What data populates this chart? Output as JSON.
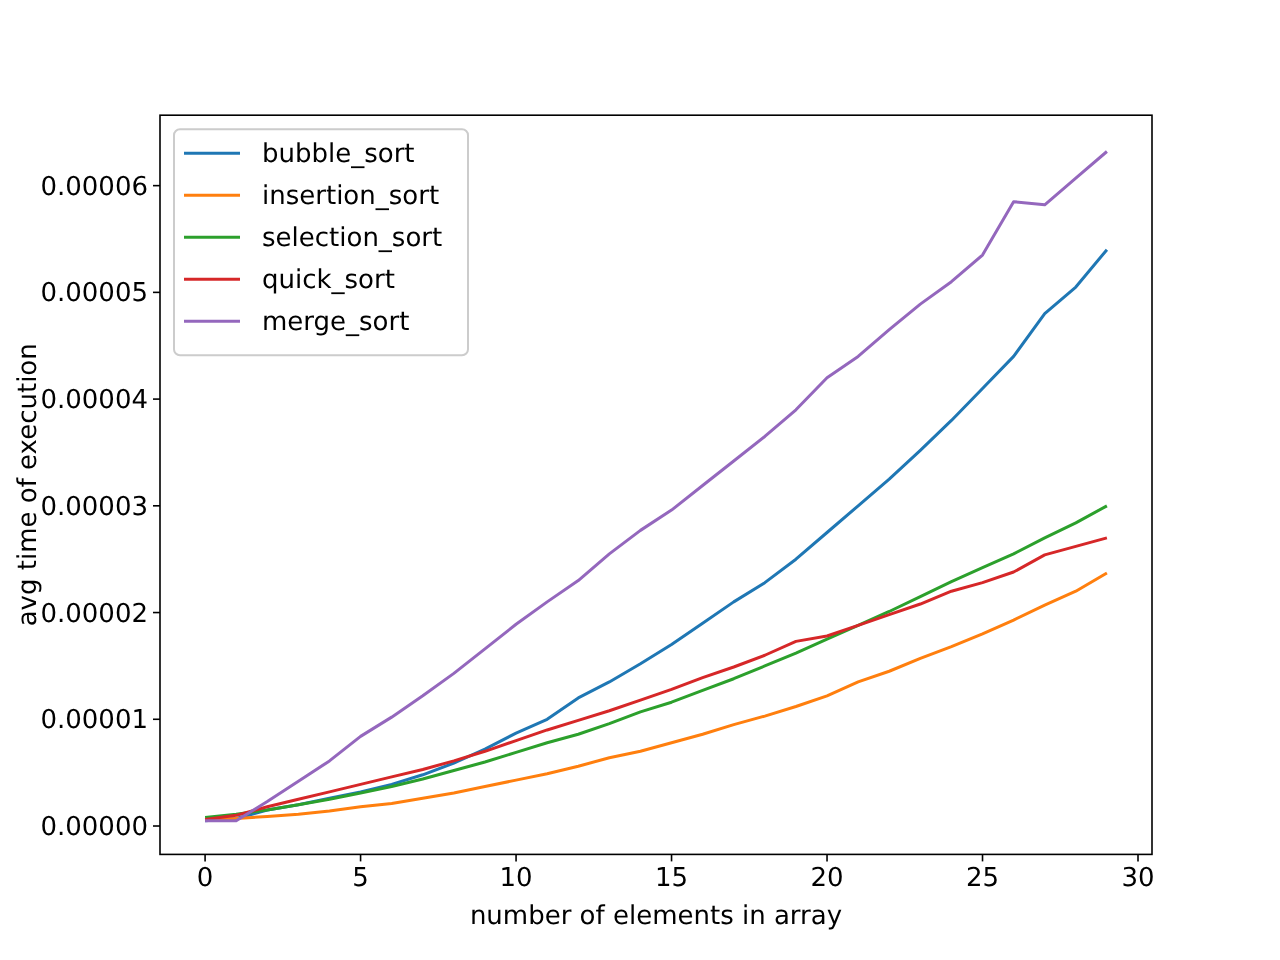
{
  "chart_data": {
    "type": "line",
    "xlabel": "number of elements in array",
    "ylabel": "avg time of execution",
    "x": [
      0,
      1,
      2,
      3,
      4,
      5,
      6,
      7,
      8,
      9,
      10,
      11,
      12,
      13,
      14,
      15,
      16,
      17,
      18,
      19,
      20,
      21,
      22,
      23,
      24,
      25,
      26,
      27,
      28,
      29
    ],
    "xlim": [
      -1.45,
      30.45
    ],
    "xticks": [
      0,
      5,
      10,
      15,
      20,
      25,
      30
    ],
    "ylim": [
      -2.66e-06,
      6.66e-05
    ],
    "yticks": [
      {
        "value": 0,
        "label": "0.00000"
      },
      {
        "value": 1e-05,
        "label": "0.00001"
      },
      {
        "value": 2e-05,
        "label": "0.00002"
      },
      {
        "value": 3e-05,
        "label": "0.00003"
      },
      {
        "value": 4e-05,
        "label": "0.00004"
      },
      {
        "value": 5e-05,
        "label": "0.00005"
      },
      {
        "value": 6e-05,
        "label": "0.00006"
      }
    ],
    "grid": false,
    "legend": "top left",
    "line_style": "solid",
    "marker": "none",
    "series": [
      {
        "name": "bubble_sort",
        "color": "#1f77b4",
        "values": [
          5e-07,
          7e-07,
          1.5e-06,
          2e-06,
          2.6e-06,
          3.2e-06,
          3.9e-06,
          4.8e-06,
          5.9e-06,
          7.2e-06,
          8.7e-06,
          1e-05,
          1.2e-05,
          1.35e-05,
          1.52e-05,
          1.7e-05,
          1.9e-05,
          2.1e-05,
          2.28e-05,
          2.5e-05,
          2.75e-05,
          3e-05,
          3.25e-05,
          3.52e-05,
          3.8e-05,
          4.1e-05,
          4.4e-05,
          4.8e-05,
          5.05e-05,
          5.4e-05
        ]
      },
      {
        "name": "insertion_sort",
        "color": "#ff7f0e",
        "values": [
          6e-07,
          7e-07,
          9e-07,
          1.1e-06,
          1.4e-06,
          1.8e-06,
          2.1e-06,
          2.6e-06,
          3.1e-06,
          3.7e-06,
          4.3e-06,
          4.9e-06,
          5.6e-06,
          6.4e-06,
          7e-06,
          7.8e-06,
          8.6e-06,
          9.5e-06,
          1.03e-05,
          1.12e-05,
          1.22e-05,
          1.35e-05,
          1.45e-05,
          1.57e-05,
          1.68e-05,
          1.8e-05,
          1.93e-05,
          2.07e-05,
          2.2e-05,
          2.37e-05
        ]
      },
      {
        "name": "selection_sort",
        "color": "#2ca02c",
        "values": [
          8e-07,
          1.1e-06,
          1.5e-06,
          2e-06,
          2.5e-06,
          3.1e-06,
          3.7e-06,
          4.4e-06,
          5.2e-06,
          6e-06,
          6.9e-06,
          7.8e-06,
          8.6e-06,
          9.6e-06,
          1.07e-05,
          1.16e-05,
          1.27e-05,
          1.38e-05,
          1.5e-05,
          1.62e-05,
          1.75e-05,
          1.88e-05,
          2.01e-05,
          2.15e-05,
          2.29e-05,
          2.42e-05,
          2.55e-05,
          2.7e-05,
          2.84e-05,
          3e-05
        ]
      },
      {
        "name": "quick_sort",
        "color": "#d62728",
        "values": [
          6e-07,
          1e-06,
          1.8e-06,
          2.5e-06,
          3.2e-06,
          3.9e-06,
          4.6e-06,
          5.3e-06,
          6.1e-06,
          7e-06,
          8e-06,
          9e-06,
          9.9e-06,
          1.08e-05,
          1.18e-05,
          1.28e-05,
          1.39e-05,
          1.49e-05,
          1.6e-05,
          1.73e-05,
          1.78e-05,
          1.88e-05,
          1.98e-05,
          2.08e-05,
          2.2e-05,
          2.28e-05,
          2.38e-05,
          2.54e-05,
          2.62e-05,
          2.7e-05
        ]
      },
      {
        "name": "merge_sort",
        "color": "#9467bd",
        "values": [
          5e-07,
          5e-07,
          2.3e-06,
          4.2e-06,
          6.1e-06,
          8.4e-06,
          1.02e-05,
          1.22e-05,
          1.43e-05,
          1.66e-05,
          1.89e-05,
          2.1e-05,
          2.3e-05,
          2.55e-05,
          2.77e-05,
          2.96e-05,
          3.19e-05,
          3.42e-05,
          3.65e-05,
          3.9e-05,
          4.2e-05,
          4.4e-05,
          4.65e-05,
          4.89e-05,
          5.1e-05,
          5.35e-05,
          5.85e-05,
          5.82e-05,
          6.07e-05,
          6.32e-05
        ]
      }
    ]
  }
}
